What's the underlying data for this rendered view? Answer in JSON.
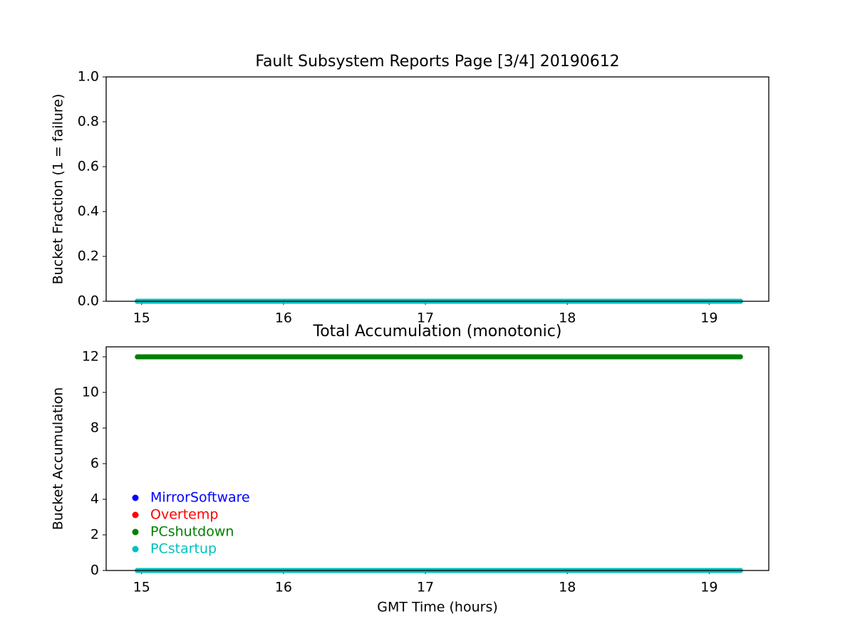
{
  "chart_data": [
    {
      "type": "line",
      "title": "Fault Subsystem Reports Page [3/4] 20190612",
      "ylabel": "Bucket Fraction (1 = failure)",
      "x": [
        14.97,
        15.14,
        15.31,
        15.48,
        15.65,
        15.82,
        15.99,
        16.16,
        16.33,
        16.5,
        16.67,
        16.84,
        17.01,
        17.18,
        17.35,
        17.52,
        17.69,
        17.86,
        18.03,
        18.2,
        18.37,
        18.54,
        18.71,
        18.88,
        19.05,
        19.22
      ],
      "series": [
        {
          "color": "#0000ff",
          "values": [
            0,
            0,
            0,
            0,
            0,
            0,
            0,
            0,
            0,
            0,
            0,
            0,
            0,
            0,
            0,
            0,
            0,
            0,
            0,
            0,
            0,
            0,
            0,
            0,
            0,
            0
          ]
        },
        {
          "color": "#ff0000",
          "values": [
            0,
            0,
            0,
            0,
            0,
            0,
            0,
            0,
            0,
            0,
            0,
            0,
            0,
            0,
            0,
            0,
            0,
            0,
            0,
            0,
            0,
            0,
            0,
            0,
            0,
            0
          ]
        },
        {
          "color": "#008000",
          "values": [
            0,
            0,
            0,
            0,
            0,
            0,
            0,
            0,
            0,
            0,
            0,
            0,
            0,
            0,
            0,
            0,
            0,
            0,
            0,
            0,
            0,
            0,
            0,
            0,
            0,
            0
          ]
        },
        {
          "color": "#00bfbf",
          "values": [
            0,
            0,
            0,
            0,
            0,
            0,
            0,
            0,
            0,
            0,
            0,
            0,
            0,
            0,
            0,
            0,
            0,
            0,
            0,
            0,
            0,
            0,
            0,
            0,
            0,
            0
          ]
        }
      ],
      "xlim": [
        14.75,
        19.42
      ],
      "xticks": [
        15,
        16,
        17,
        18,
        19
      ],
      "ylim": [
        0,
        1
      ],
      "yticks": [
        {
          "value": 0,
          "label": "0.0"
        },
        {
          "value": 0.2,
          "label": "0.2"
        },
        {
          "value": 0.4,
          "label": "0.4"
        },
        {
          "value": 0.6,
          "label": "0.6"
        },
        {
          "value": 0.8,
          "label": "0.8"
        },
        {
          "value": 1,
          "label": "1.0"
        }
      ]
    },
    {
      "type": "line",
      "title": "Total Accumulation (monotonic)",
      "xlabel": "GMT Time (hours)",
      "ylabel": "Bucket Accumulation",
      "x": [
        14.97,
        15.14,
        15.31,
        15.48,
        15.65,
        15.82,
        15.99,
        16.16,
        16.33,
        16.5,
        16.67,
        16.84,
        17.01,
        17.18,
        17.35,
        17.52,
        17.69,
        17.86,
        18.03,
        18.2,
        18.37,
        18.54,
        18.71,
        18.88,
        19.05,
        19.22
      ],
      "series": [
        {
          "name": "MirrorSoftware",
          "color": "#0000ff",
          "values": [
            0,
            0,
            0,
            0,
            0,
            0,
            0,
            0,
            0,
            0,
            0,
            0,
            0,
            0,
            0,
            0,
            0,
            0,
            0,
            0,
            0,
            0,
            0,
            0,
            0,
            0
          ]
        },
        {
          "name": "Overtemp",
          "color": "#ff0000",
          "values": [
            0,
            0,
            0,
            0,
            0,
            0,
            0,
            0,
            0,
            0,
            0,
            0,
            0,
            0,
            0,
            0,
            0,
            0,
            0,
            0,
            0,
            0,
            0,
            0,
            0,
            0
          ]
        },
        {
          "name": "PCshutdown",
          "color": "#008000",
          "values": [
            12,
            12,
            12,
            12,
            12,
            12,
            12,
            12,
            12,
            12,
            12,
            12,
            12,
            12,
            12,
            12,
            12,
            12,
            12,
            12,
            12,
            12,
            12,
            12,
            12,
            12
          ]
        },
        {
          "name": "PCstartup",
          "color": "#00bfbf",
          "values": [
            0,
            0,
            0,
            0,
            0,
            0,
            0,
            0,
            0,
            0,
            0,
            0,
            0,
            0,
            0,
            0,
            0,
            0,
            0,
            0,
            0,
            0,
            0,
            0,
            0,
            0
          ]
        }
      ],
      "xlim": [
        14.75,
        19.42
      ],
      "xticks": [
        15,
        16,
        17,
        18,
        19
      ],
      "ylim": [
        0,
        12.56
      ],
      "yticks": [
        0,
        2,
        4,
        6,
        8,
        10,
        12
      ],
      "legend": "lower left"
    }
  ]
}
